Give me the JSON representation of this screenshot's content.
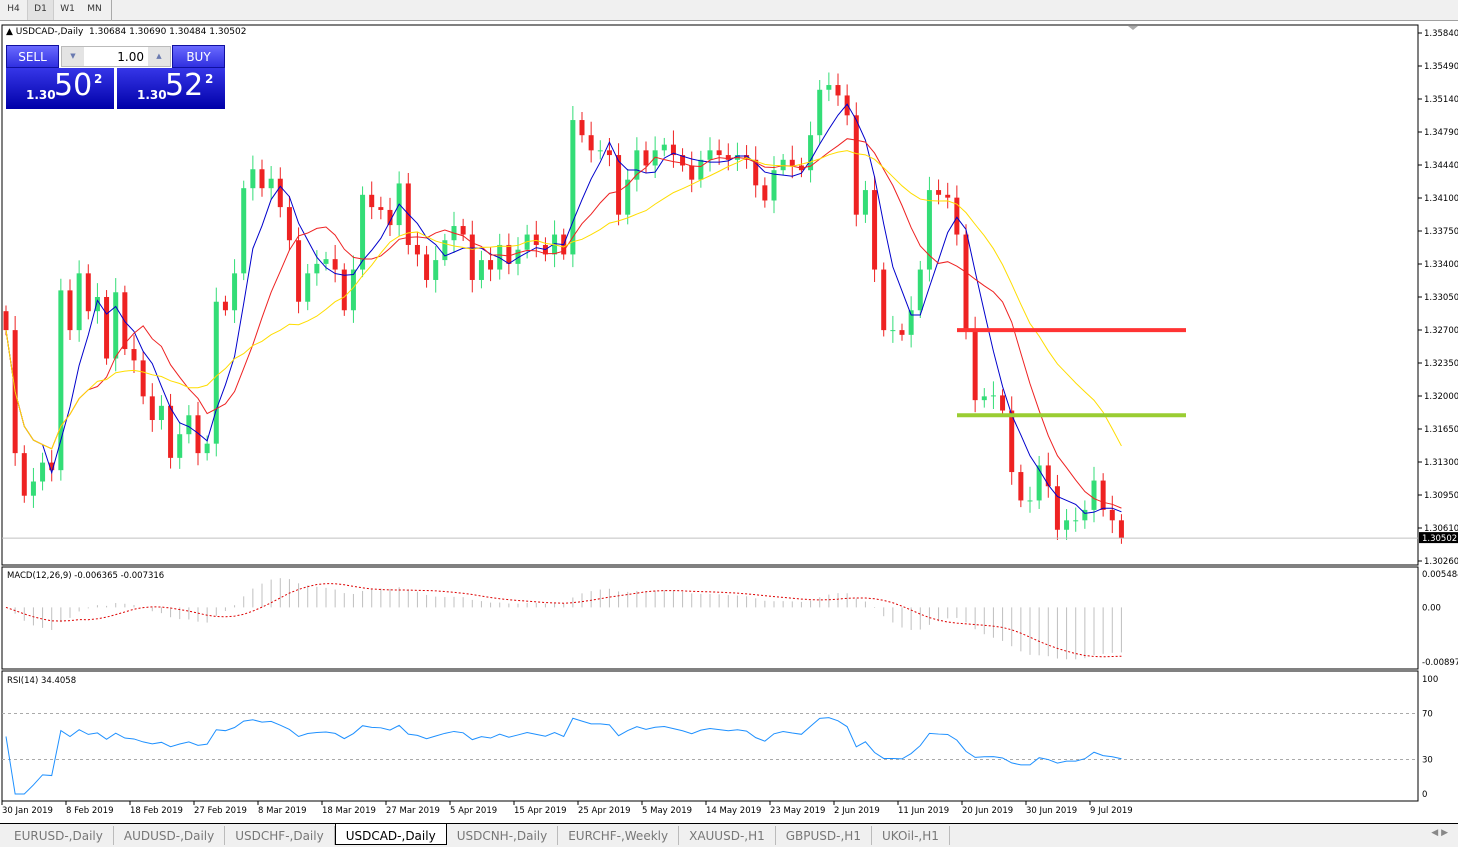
{
  "timeframes": [
    "H4",
    "D1",
    "W1",
    "MN"
  ],
  "active_timeframe": "D1",
  "chart": {
    "symbol_line": "USDCAD-,Daily",
    "ohlc": "1.30684 1.30690 1.30484 1.30502",
    "current_price": "1.30502",
    "price_axis": [
      "1.35840",
      "1.35490",
      "1.35140",
      "1.34790",
      "1.34440",
      "1.34100",
      "1.33750",
      "1.33400",
      "1.33050",
      "1.32700",
      "1.32350",
      "1.32000",
      "1.31650",
      "1.31300",
      "1.30950",
      "1.30610",
      "1.30260"
    ],
    "price_range": [
      1.3026,
      1.3584
    ],
    "date_axis": [
      "30 Jan 2019",
      "8 Feb 2019",
      "18 Feb 2019",
      "27 Feb 2019",
      "8 Mar 2019",
      "18 Mar 2019",
      "27 Mar 2019",
      "5 Apr 2019",
      "15 Apr 2019",
      "25 Apr 2019",
      "5 May 2019",
      "14 May 2019",
      "23 May 2019",
      "2 Jun 2019",
      "11 Jun 2019",
      "20 Jun 2019",
      "30 Jun 2019",
      "9 Jul 2019"
    ],
    "closes": [
      1.327,
      1.314,
      1.3095,
      1.311,
      1.313,
      1.3122,
      1.3312,
      1.327,
      1.333,
      1.329,
      1.3305,
      1.324,
      1.331,
      1.325,
      1.3238,
      1.32,
      1.3175,
      1.319,
      1.3135,
      1.316,
      1.318,
      1.314,
      1.315,
      1.33,
      1.3291,
      1.333,
      1.342,
      1.344,
      1.342,
      1.343,
      1.34,
      1.3365,
      1.33,
      1.333,
      1.334,
      1.3345,
      1.3334,
      1.3291,
      1.3334,
      1.3413,
      1.34,
      1.3397,
      1.3381,
      1.3425,
      1.336,
      1.335,
      1.3323,
      1.3344,
      1.3365,
      1.338,
      1.3371,
      1.3323,
      1.3344,
      1.3334,
      1.336,
      1.334,
      1.3355,
      1.3371,
      1.336,
      1.335,
      1.3371,
      1.335,
      1.3492,
      1.3476,
      1.346,
      1.346,
      1.3455,
      1.3392,
      1.3429,
      1.346,
      1.3444,
      1.346,
      1.3466,
      1.3455,
      1.3444,
      1.3429,
      1.345,
      1.346,
      1.3455,
      1.345,
      1.3455,
      1.345,
      1.3423,
      1.3407,
      1.3439,
      1.345,
      1.3444,
      1.3439,
      1.3476,
      1.3524,
      1.3529,
      1.3518,
      1.3497,
      1.3392,
      1.3418,
      1.3334,
      1.327,
      1.327,
      1.3265,
      1.3291,
      1.3334,
      1.3418,
      1.3413,
      1.341,
      1.3371,
      1.327,
      1.3196,
      1.32,
      1.3201,
      1.3185,
      1.312,
      1.309,
      1.309,
      1.3127,
      1.3105,
      1.3059,
      1.3069,
      1.3069,
      1.308,
      1.3111,
      1.308,
      1.3069,
      1.305
    ],
    "first_open": 1.329,
    "horizontal_lines": [
      {
        "price": 1.327,
        "color": "#ff3333"
      },
      {
        "price": 1.318,
        "color": "#9acd32"
      }
    ],
    "colors": {
      "bull": "#33dd77",
      "bear": "#ee2222",
      "ma_fast": "#0000cc",
      "ma_mid": "#ee2222",
      "ma_slow": "#ffdd00"
    }
  },
  "trade": {
    "sell_label": "SELL",
    "buy_label": "BUY",
    "volume": "1.00",
    "sell_prefix": "1.30",
    "sell_big": "50",
    "sell_sup": "2",
    "buy_prefix": "1.30",
    "buy_big": "52",
    "buy_sup": "2"
  },
  "macd": {
    "label": "MACD(12,26,9) -0.006365 -0.007316",
    "axis": [
      "0.005484",
      "0.00",
      "-0.00897"
    ],
    "range": [
      -0.00897,
      0.005484
    ]
  },
  "rsi": {
    "label": "RSI(14) 34.4058",
    "axis": [
      "100",
      "70",
      "30",
      "0"
    ],
    "levels": [
      70,
      30
    ],
    "color": "#1e90ff"
  },
  "tabs": [
    "EURUSD-,Daily",
    "AUDUSD-,Daily",
    "USDCHF-,Daily",
    "USDCAD-,Daily",
    "USDCNH-,Daily",
    "EURCHF-,Weekly",
    "XAUUSD-,H1",
    "GBPUSD-,H1",
    "UKOil-,H1"
  ],
  "active_tab": "USDCAD-,Daily"
}
